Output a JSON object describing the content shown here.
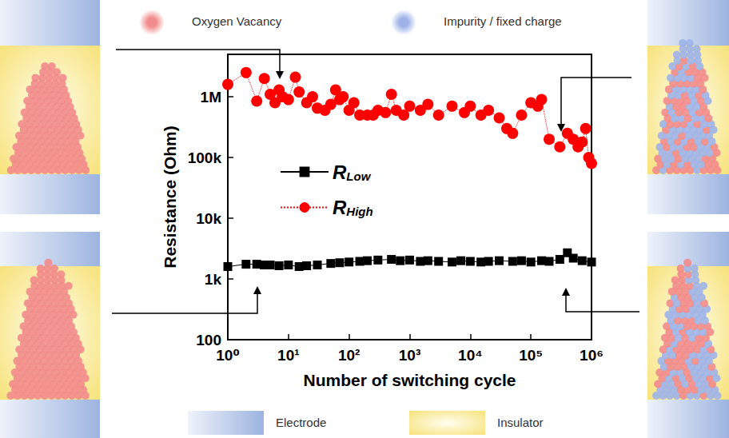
{
  "chart_data": {
    "type": "line",
    "x_label": "Number of switching cycle",
    "y_label": "Resistance (Ohm)",
    "log": true,
    "grid": false,
    "legend": "left",
    "xlim": [
      1,
      1000000
    ],
    "xticks": [
      {
        "value": 1,
        "label": "10⁰"
      },
      {
        "value": 10,
        "label": "10¹"
      },
      {
        "value": 100,
        "label": "10²"
      },
      {
        "value": 1000,
        "label": "10³"
      },
      {
        "value": 10000,
        "label": "10⁴"
      },
      {
        "value": 100000,
        "label": "10⁵"
      },
      {
        "value": 1000000,
        "label": "10⁶"
      }
    ],
    "ylim": [
      100,
      5000000
    ],
    "yticks": [
      100,
      {
        "value": 1000,
        "label": "1k"
      },
      {
        "value": 10000,
        "label": "10k"
      },
      {
        "value": 100000,
        "label": "100k"
      },
      {
        "value": 1000000,
        "label": "1M"
      }
    ],
    "series": [
      {
        "name": "RLow",
        "color": "#000000",
        "marker": "square",
        "line_style": "solid",
        "x": [
          1,
          2,
          3,
          4,
          5,
          7,
          10,
          15,
          20,
          30,
          50,
          70,
          100,
          150,
          200,
          300,
          500,
          700,
          1000,
          1500,
          2000,
          3000,
          5000,
          7000,
          10000,
          15000,
          20000,
          30000,
          50000,
          70000,
          100000,
          150000,
          200000,
          300000,
          400000,
          500000,
          700000,
          1000000
        ],
        "values": [
          1600,
          1750,
          1750,
          1700,
          1700,
          1650,
          1700,
          1600,
          1650,
          1700,
          1800,
          1850,
          1900,
          1950,
          2000,
          2050,
          2100,
          2000,
          2050,
          1950,
          2000,
          1950,
          1900,
          2000,
          1950,
          1900,
          1950,
          2000,
          1950,
          2000,
          1900,
          2000,
          1950,
          2100,
          2700,
          2200,
          2000,
          1900
        ]
      },
      {
        "name": "RHigh",
        "color": "#ff0000",
        "marker": "circle",
        "line_style": "dotted",
        "x": [
          1,
          2,
          3,
          4,
          5,
          6,
          7,
          8,
          10,
          13,
          15,
          20,
          25,
          30,
          40,
          50,
          60,
          70,
          80,
          100,
          120,
          150,
          200,
          250,
          300,
          400,
          500,
          600,
          800,
          1000,
          1500,
          2000,
          3000,
          5000,
          8000,
          10000,
          15000,
          20000,
          30000,
          40000,
          50000,
          70000,
          100000,
          130000,
          150000,
          200000,
          300000,
          400000,
          500000,
          600000,
          700000,
          800000,
          900000,
          1000000
        ],
        "values": [
          1600000,
          2500000,
          850000,
          2000000,
          1100000,
          800000,
          1300000,
          1000000,
          900000,
          2100000,
          1200000,
          800000,
          1000000,
          650000,
          600000,
          750000,
          1300000,
          900000,
          1000000,
          600000,
          800000,
          500000,
          500000,
          500000,
          600000,
          550000,
          1100000,
          600000,
          500000,
          700000,
          600000,
          750000,
          500000,
          700000,
          550000,
          700000,
          500000,
          600000,
          450000,
          300000,
          250000,
          500000,
          800000,
          700000,
          900000,
          200000,
          150000,
          250000,
          200000,
          150000,
          180000,
          300000,
          100000,
          80000
        ]
      }
    ]
  },
  "key": {
    "items": [
      {
        "label": "Oxygen Vacancy",
        "color": "#f28b8b"
      },
      {
        "label": "Impurity / fixed charge",
        "color": "#9fb2e8"
      },
      {
        "label": "Electrode",
        "color": "#9db4e0"
      },
      {
        "label": "Insulator",
        "color": "#f7e27a"
      }
    ]
  }
}
